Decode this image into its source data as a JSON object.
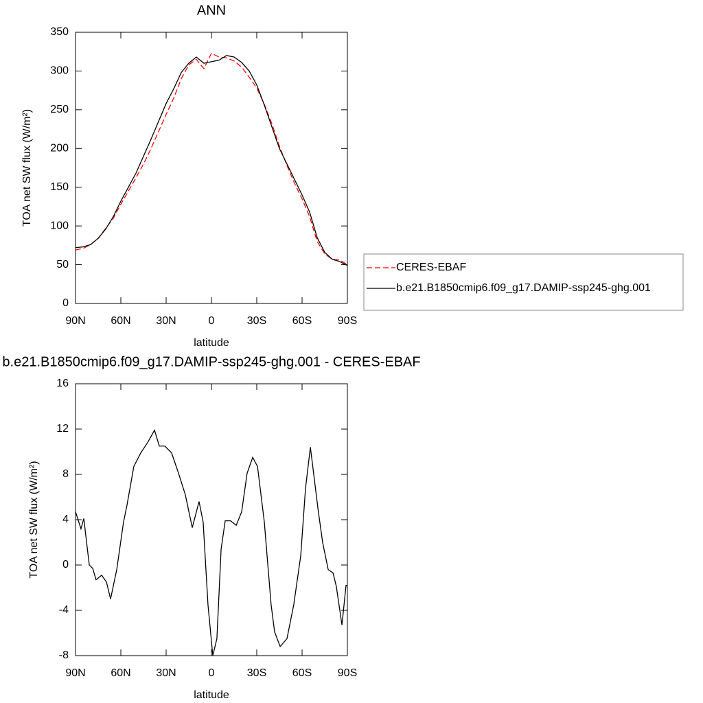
{
  "chart_data": [
    {
      "type": "line",
      "title": "ANN",
      "xlabel": "latitude",
      "ylabel": "TOA net SW flux (W/m²)",
      "x": [
        90,
        85,
        80,
        75,
        70,
        65,
        60,
        55,
        50,
        45,
        40,
        35,
        30,
        25,
        20,
        15,
        10,
        5,
        0,
        -5,
        -10,
        -15,
        -20,
        -25,
        -30,
        -35,
        -40,
        -45,
        -50,
        -55,
        -60,
        -65,
        -70,
        -75,
        -80,
        -85,
        -90
      ],
      "series": [
        {
          "name": "CERES-EBAF",
          "color": "#ff0000",
          "line_style": "dashed",
          "values": [
            69,
            71,
            76,
            84,
            97,
            110,
            128,
            145,
            162,
            180,
            200,
            222,
            244,
            265,
            290,
            308,
            315,
            303,
            323,
            318,
            317,
            313,
            305,
            292,
            278,
            257,
            232,
            203,
            178,
            155,
            135,
            112,
            80,
            64,
            57,
            56,
            50
          ]
        },
        {
          "name": "b.e21.B1850cmip6.f09_g17.DAMIP-ssp245-ghg.001",
          "color": "#000000",
          "line_style": "solid",
          "values": [
            72,
            73,
            76,
            84,
            96,
            112,
            132,
            150,
            168,
            190,
            212,
            235,
            258,
            277,
            298,
            310,
            318,
            310,
            312,
            314,
            320,
            318,
            311,
            300,
            282,
            256,
            228,
            200,
            180,
            160,
            140,
            118,
            85,
            66,
            57,
            54,
            49
          ]
        }
      ],
      "xlim": [
        90,
        -90
      ],
      "xticks": [
        {
          "value": 90,
          "label": "90N"
        },
        {
          "value": 60,
          "label": "60N"
        },
        {
          "value": 30,
          "label": "30N"
        },
        0,
        {
          "value": -30,
          "label": "30S"
        },
        {
          "value": -60,
          "label": "60S"
        },
        {
          "value": -90,
          "label": "90S"
        }
      ],
      "ylim": [
        0,
        350
      ],
      "yticks": [
        0,
        50,
        100,
        150,
        200,
        250,
        300,
        350
      ],
      "legend": "outside-right"
    },
    {
      "type": "line",
      "title": "b.e21.B1850cmip6.f09_g17.DAMIP-ssp245-ghg.001 - CERES-EBAF",
      "xlabel": "latitude",
      "ylabel": "TOA net SW flux (W/m²)",
      "x": [
        90,
        86.4,
        84.5,
        80.9,
        78.6,
        76.4,
        72.7,
        69.5,
        66.8,
        62.7,
        58.2,
        55.9,
        51.4,
        46.8,
        42.3,
        37.7,
        34.5,
        30.9,
        26.4,
        21.8,
        17.3,
        12.7,
        8.2,
        5.5,
        2.3,
        -0.9,
        -3.6,
        -6.4,
        -9.1,
        -12.7,
        -16.4,
        -20,
        -23.6,
        -27.3,
        -30.5,
        -35,
        -39.5,
        -41.8,
        -45.5,
        -50,
        -54.5,
        -59.1,
        -62.3,
        -65.5,
        -68.2,
        -70.5,
        -73.6,
        -77.3,
        -80.5,
        -82.7,
        -86.4,
        -89.1,
        -90
      ],
      "series": [
        {
          "color": "#000000",
          "line_style": "solid",
          "values": [
            4.7,
            3.2,
            4.1,
            0,
            -0.3,
            -1.3,
            -0.9,
            -1.5,
            -3.0,
            -0.4,
            3.8,
            5.3,
            8.7,
            9.9,
            10.8,
            11.9,
            10.5,
            10.5,
            9.9,
            8.1,
            6.2,
            3.3,
            5.6,
            3.8,
            -3.5,
            -8,
            -6.5,
            1.4,
            3.9,
            3.9,
            3.5,
            4.7,
            8.1,
            9.5,
            8.7,
            3.8,
            -3.5,
            -5.9,
            -7.2,
            -6.5,
            -3.5,
            0.8,
            6.8,
            10.4,
            7.5,
            5.0,
            2.0,
            -0.4,
            -0.7,
            -1.9,
            -5.3,
            -1.8,
            -1.8
          ]
        }
      ],
      "xlim": [
        90,
        -90
      ],
      "xticks": [
        {
          "value": 90,
          "label": "90N"
        },
        {
          "value": 60,
          "label": "60N"
        },
        {
          "value": 30,
          "label": "30N"
        },
        0,
        {
          "value": -30,
          "label": "30S"
        },
        {
          "value": -60,
          "label": "60S"
        },
        {
          "value": -90,
          "label": "90S"
        }
      ],
      "ylim": [
        -8,
        16
      ],
      "yticks": [
        -8,
        -4,
        0,
        4,
        8,
        12,
        16
      ]
    }
  ]
}
